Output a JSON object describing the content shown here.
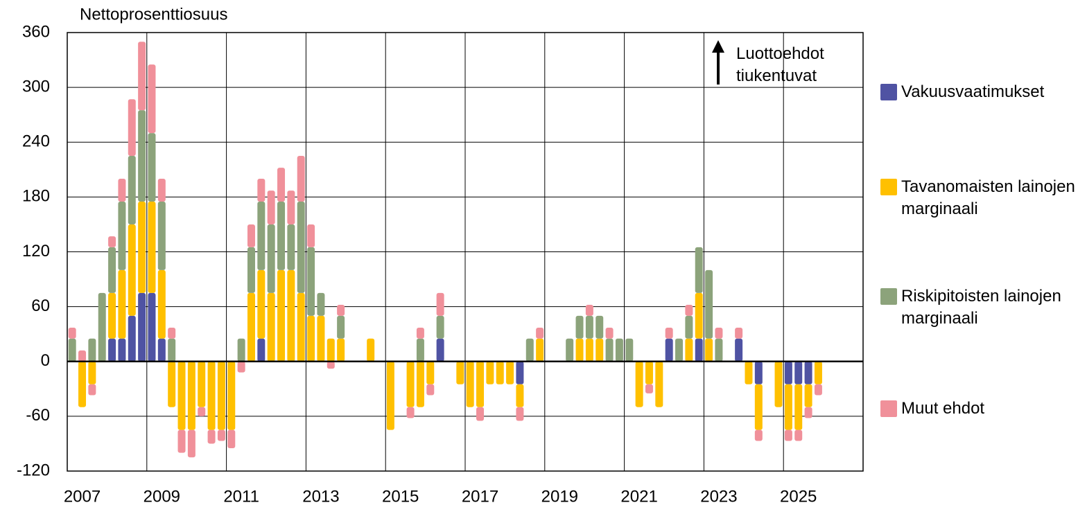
{
  "chart_data": {
    "type": "stacked-bar",
    "y_label": "Nettoprosenttiosuus",
    "annotation": "Luottoehdot tiukentuvat",
    "categories": [
      null,
      "2007",
      null,
      null,
      null,
      null,
      null,
      null,
      null,
      "2009",
      null,
      null,
      null,
      null,
      null,
      null,
      null,
      "2011",
      null,
      null,
      null,
      null,
      null,
      null,
      null,
      "2013",
      null,
      null,
      null,
      null,
      null,
      null,
      null,
      "2015",
      null,
      null,
      null,
      null,
      null,
      null,
      null,
      "2017",
      null,
      null,
      null,
      null,
      null,
      null,
      null,
      "2019",
      null,
      null,
      null,
      null,
      null,
      null,
      null,
      "2021",
      null,
      null,
      null,
      null,
      null,
      null,
      null,
      "2023",
      null,
      null,
      null,
      null,
      null,
      null,
      null,
      "2025",
      null,
      null,
      null,
      null,
      null,
      null
    ],
    "ylim": [
      -120,
      360
    ],
    "yticks": [
      -120,
      -60,
      0,
      60,
      120,
      180,
      240,
      300,
      360
    ],
    "grid": true,
    "series": [
      {
        "name": "Vakuusvaatimukset",
        "color": "#4f53a3",
        "values": [
          null,
          null,
          null,
          null,
          25,
          25,
          50,
          75,
          75,
          25,
          null,
          null,
          null,
          null,
          null,
          null,
          null,
          null,
          null,
          25,
          null,
          null,
          null,
          null,
          null,
          null,
          null,
          null,
          null,
          null,
          null,
          null,
          null,
          null,
          null,
          null,
          null,
          25,
          null,
          null,
          null,
          null,
          null,
          null,
          null,
          -25,
          null,
          null,
          null,
          null,
          null,
          null,
          null,
          null,
          null,
          null,
          null,
          null,
          null,
          null,
          25,
          null,
          null,
          25,
          null,
          null,
          null,
          25,
          null,
          -25,
          null,
          null,
          -25,
          -25,
          -25,
          null,
          null,
          null,
          null,
          null
        ]
      },
      {
        "name": "Tavanomaisten lainojen marginaali",
        "color": "#ffc000",
        "values": [
          null,
          -50,
          -25,
          null,
          50,
          75,
          100,
          100,
          100,
          75,
          -50,
          -75,
          -75,
          -50,
          -75,
          -75,
          -75,
          null,
          75,
          75,
          75,
          100,
          100,
          75,
          50,
          50,
          25,
          25,
          null,
          null,
          25,
          null,
          -75,
          null,
          -50,
          -50,
          -25,
          null,
          null,
          -25,
          -50,
          -50,
          -25,
          -25,
          -25,
          -25,
          null,
          25,
          null,
          null,
          null,
          25,
          25,
          25,
          null,
          null,
          null,
          -50,
          -25,
          -50,
          null,
          null,
          25,
          50,
          25,
          null,
          null,
          null,
          -25,
          -50,
          null,
          -50,
          -50,
          -50,
          -25,
          -25,
          null,
          null,
          null,
          null
        ]
      },
      {
        "name": "Riskipitoisten lainojen marginaali",
        "color": "#8ca37b",
        "values": [
          25,
          null,
          25,
          75,
          50,
          75,
          75,
          100,
          75,
          75,
          25,
          null,
          null,
          null,
          null,
          null,
          null,
          25,
          50,
          75,
          75,
          75,
          50,
          100,
          75,
          25,
          null,
          25,
          null,
          null,
          null,
          null,
          null,
          null,
          null,
          25,
          null,
          25,
          null,
          null,
          null,
          null,
          null,
          null,
          null,
          null,
          25,
          null,
          null,
          null,
          25,
          25,
          25,
          25,
          25,
          25,
          25,
          null,
          null,
          null,
          null,
          25,
          25,
          50,
          75,
          25,
          null,
          null,
          null,
          null,
          null,
          null,
          null,
          null,
          null,
          null,
          null,
          null,
          null,
          null
        ]
      },
      {
        "name": "Muut ehdot",
        "color": "#f0909a",
        "values": [
          12,
          12,
          -12,
          null,
          12,
          25,
          62,
          75,
          75,
          25,
          12,
          -25,
          -30,
          -10,
          -15,
          -12,
          -20,
          -12,
          25,
          25,
          37,
          37,
          37,
          50,
          25,
          null,
          -8,
          12,
          null,
          null,
          null,
          null,
          null,
          null,
          -12,
          12,
          -12,
          25,
          null,
          null,
          null,
          -15,
          null,
          null,
          null,
          -15,
          null,
          12,
          null,
          null,
          null,
          null,
          12,
          null,
          12,
          null,
          null,
          null,
          -10,
          null,
          12,
          null,
          12,
          null,
          null,
          12,
          null,
          12,
          null,
          -12,
          null,
          null,
          -12,
          -12,
          -12,
          -12,
          null,
          null,
          null,
          null
        ]
      }
    ]
  }
}
